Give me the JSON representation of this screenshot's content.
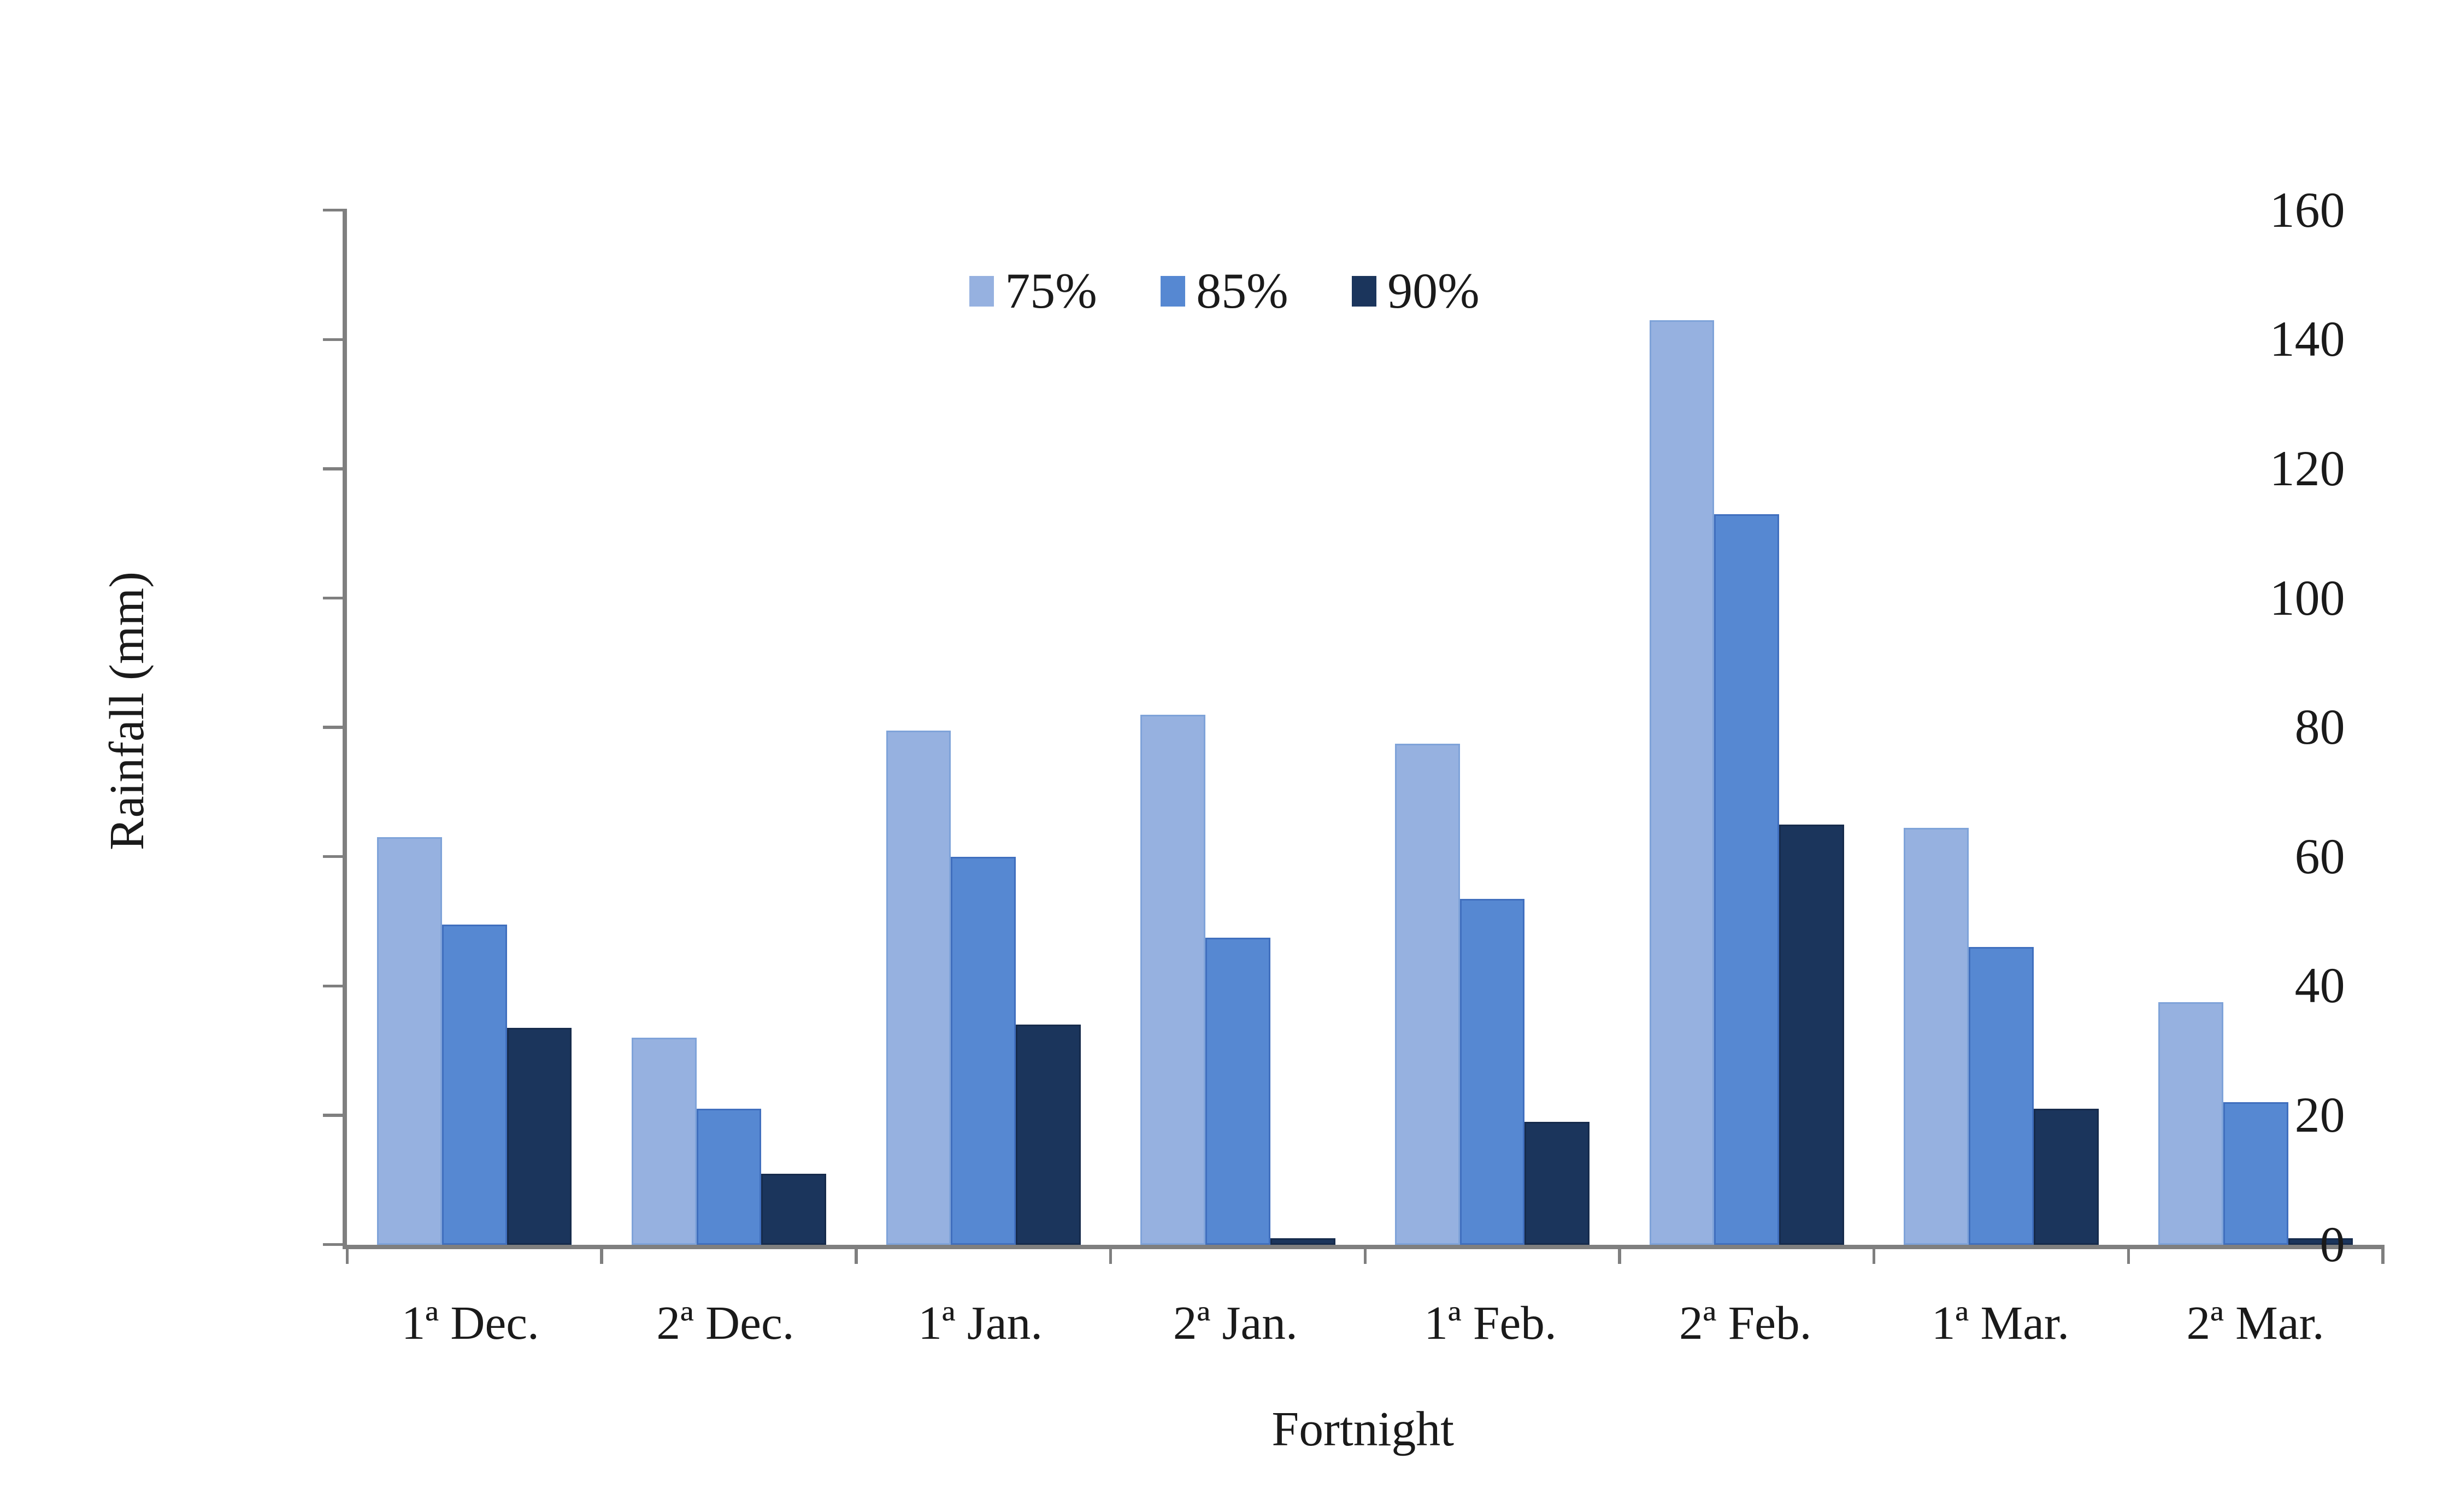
{
  "chart_data": {
    "type": "bar",
    "title": "",
    "xlabel": "Fortnight",
    "ylabel": "Rainfall (mm)",
    "ylim": [
      0,
      160
    ],
    "yticks": [
      0,
      20,
      40,
      60,
      80,
      100,
      120,
      140,
      160
    ],
    "grid": false,
    "legend_position": "top-center",
    "categories": [
      "1ª Dec.",
      "2ª Dec.",
      "1ª Jan.",
      "2ª Jan.",
      "1ª Feb.",
      "2ª Feb.",
      "1ª Mar.",
      "2ª Mar."
    ],
    "series": [
      {
        "name": "75%",
        "color": "#96B1E0",
        "border": "#7FA3D9",
        "values": [
          63,
          32,
          79.5,
          82,
          77.5,
          143,
          64.5,
          37.5
        ]
      },
      {
        "name": "85%",
        "color": "#5688D2",
        "border": "#406FBE",
        "values": [
          49.5,
          21,
          60,
          47.5,
          53.5,
          113,
          46,
          22
        ]
      },
      {
        "name": "90%",
        "color": "#1B355C",
        "border": "#162B4C",
        "values": [
          33.5,
          11,
          34,
          1,
          19,
          65,
          21,
          1
        ]
      }
    ]
  },
  "colors": {
    "axis": "#7F7F7F",
    "text": "#1A1A1A",
    "background": "#FFFFFF"
  }
}
